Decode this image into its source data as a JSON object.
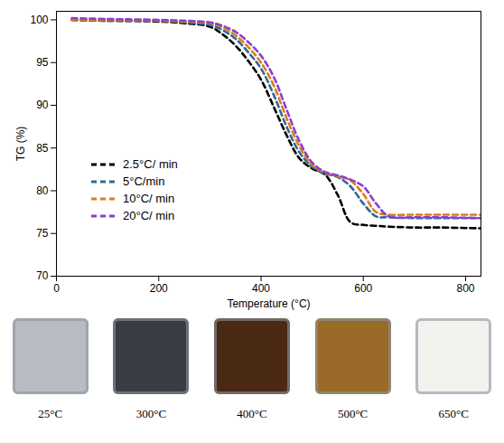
{
  "chart_data": {
    "type": "line",
    "x_label": "Temperature (°C)",
    "y_label": "TG (%)",
    "x": [
      30,
      100,
      200,
      250,
      300,
      325,
      350,
      375,
      400,
      425,
      450,
      475,
      500,
      525,
      550,
      575,
      600,
      625,
      650,
      700,
      750,
      830
    ],
    "series": [
      {
        "name": "2.5°C/ min",
        "color": "#000000",
        "values": [
          100,
          99.9,
          99.8,
          99.6,
          99.2,
          98.3,
          97,
          95.2,
          93,
          89.8,
          86.5,
          83.8,
          82.6,
          81.9,
          79.5,
          76.3,
          76,
          75.9,
          75.8,
          75.7,
          75.7,
          75.6
        ]
      },
      {
        "name": "5°C/min",
        "color": "#2e6a94",
        "values": [
          100,
          99.9,
          99.9,
          99.7,
          99.4,
          98.8,
          97.8,
          96.2,
          94.3,
          91.2,
          87.5,
          84.5,
          82.8,
          82,
          81.6,
          80.5,
          78.5,
          77,
          76.9,
          76.8,
          76.8,
          76.8
        ]
      },
      {
        "name": "10°C/ min",
        "color": "#e07b1c",
        "values": [
          100,
          100,
          99.9,
          99.8,
          99.6,
          99.1,
          98.2,
          96.8,
          95,
          92.3,
          88.5,
          85.2,
          83,
          82.1,
          81.7,
          81.2,
          79.6,
          77.5,
          77.2,
          77.2,
          77.2,
          77.2
        ]
      },
      {
        "name": "20°C/ min",
        "color": "#8a3fd1",
        "values": [
          100.2,
          100.1,
          100,
          99.9,
          99.7,
          99.3,
          98.6,
          97.4,
          95.8,
          93.3,
          89.5,
          85.8,
          83.3,
          82.2,
          81.8,
          81.3,
          80.5,
          78.5,
          77,
          76.9,
          76.9,
          76.8
        ]
      }
    ],
    "xlim": [
      0,
      830
    ],
    "xticks": [
      0,
      200,
      400,
      600,
      800
    ],
    "ylim": [
      70,
      101
    ],
    "yticks": [
      70,
      75,
      80,
      85,
      90,
      95,
      100
    ],
    "line_style": "dashed",
    "grid": false,
    "legend": "left"
  },
  "samples": [
    {
      "label": "25°C",
      "color": "#b8bcc2"
    },
    {
      "label": "300°C",
      "color": "#3a3c44"
    },
    {
      "label": "400°C",
      "color": "#4a2a12"
    },
    {
      "label": "500°C",
      "color": "#9a6a28"
    },
    {
      "label": "650°C",
      "color": "#f2f2ef"
    }
  ]
}
